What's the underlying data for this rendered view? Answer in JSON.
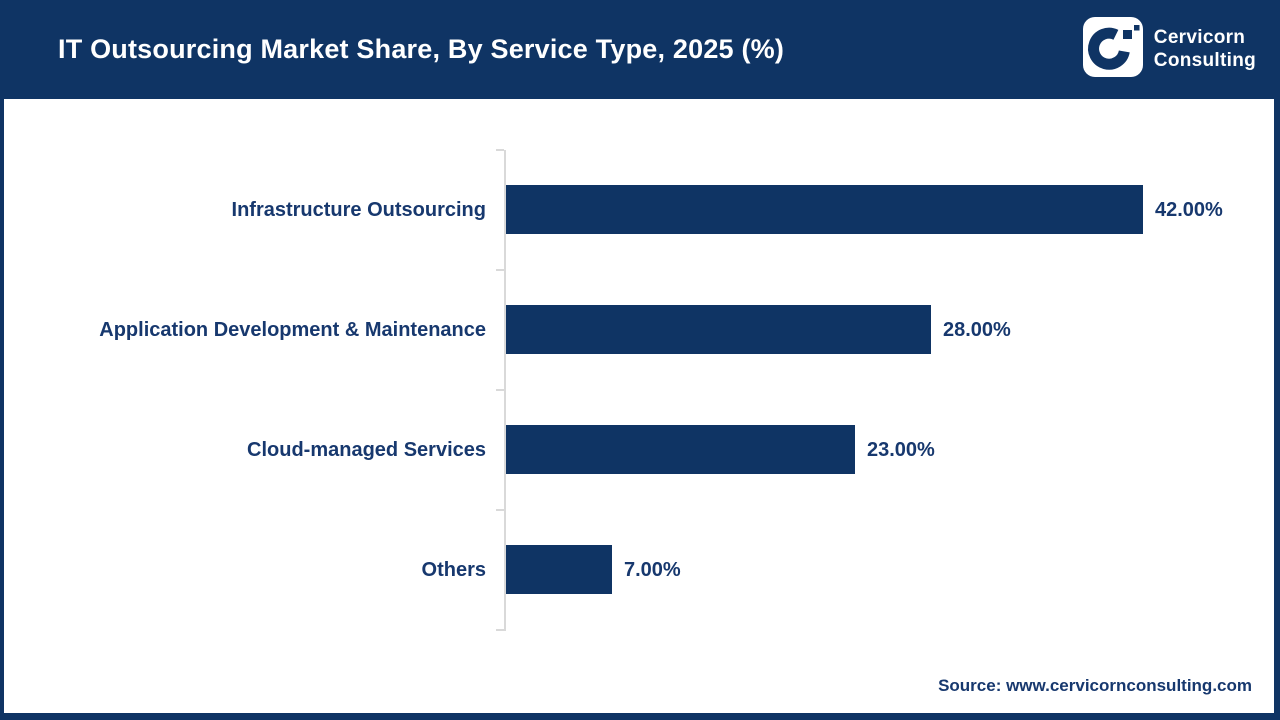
{
  "header": {
    "title": "IT Outsourcing Market Share, By Service Type, 2025 (%)",
    "brand": {
      "line1": "Cervicorn",
      "line2": "Consulting",
      "logo": "cervicorn-c-logo"
    }
  },
  "chart_data": {
    "type": "bar",
    "orientation": "horizontal",
    "title": "IT Outsourcing Market Share, By Service Type, 2025 (%)",
    "categories": [
      "Infrastructure Outsourcing",
      "Application Development & Maintenance",
      "Cloud-managed Services",
      "Others"
    ],
    "values": [
      42,
      28,
      23,
      7
    ],
    "value_labels": [
      "42.00%",
      "28.00%",
      "23.00%",
      "7.00%"
    ],
    "unit": "%",
    "xlabel": "",
    "ylabel": "",
    "xlim": [
      0,
      42
    ],
    "grid": false,
    "legend": false,
    "bar_color": "#0f3464",
    "label_color": "#17386e",
    "axis_color": "#d9d9d9"
  },
  "footer": {
    "source": "Source: www.cervicornconsulting.com"
  },
  "colors": {
    "navy": "#0f3464",
    "text_navy": "#17386e",
    "axis_gray": "#d9d9d9",
    "white": "#ffffff"
  }
}
